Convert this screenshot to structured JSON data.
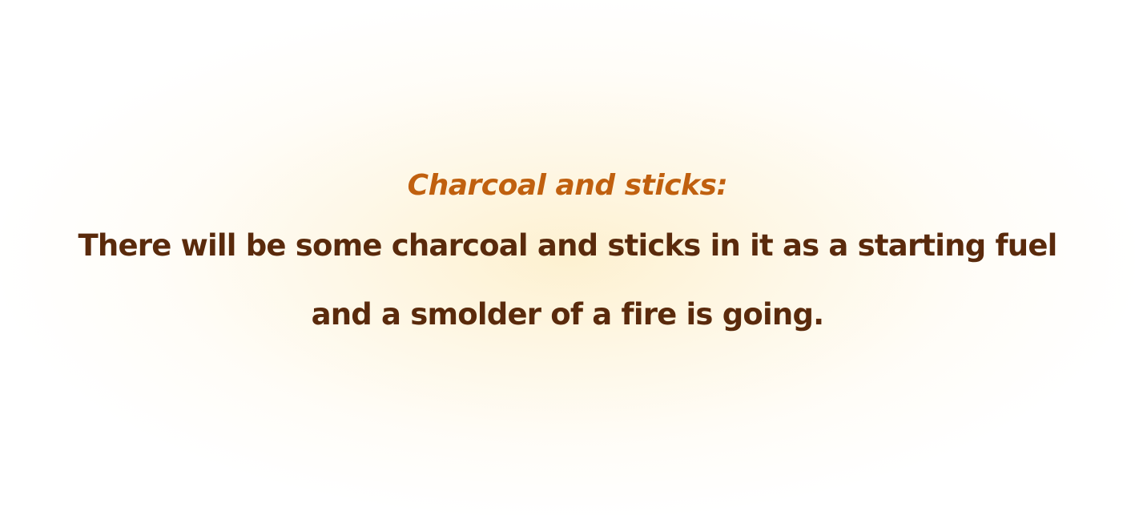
{
  "caption": {
    "heading": "Charcoal and sticks:",
    "lines": [
      "There will be some charcoal and sticks in it as a starting fuel",
      "and a smolder of a fire is going."
    ]
  },
  "colors": {
    "heading": "#c0600f",
    "body": "#5a2a0c",
    "glow": "#fdf0ce"
  }
}
